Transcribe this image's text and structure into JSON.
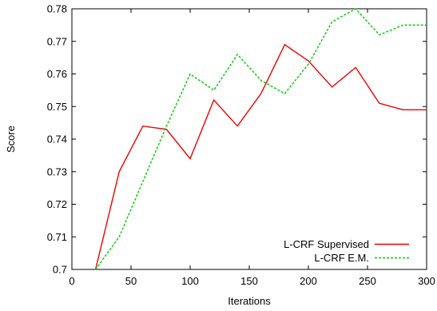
{
  "chart_data": {
    "type": "line",
    "xlabel": "Iterations",
    "ylabel": "Score",
    "xlim": [
      0,
      300
    ],
    "ylim": [
      0.7,
      0.78
    ],
    "xticks": [
      0,
      50,
      100,
      150,
      200,
      250,
      300
    ],
    "yticks": [
      0.7,
      0.71,
      0.72,
      0.73,
      0.74,
      0.75,
      0.76,
      0.77,
      0.78
    ],
    "xtick_labels": [
      "0",
      "50",
      "100",
      "150",
      "200",
      "250",
      "300"
    ],
    "ytick_labels": [
      "0.7",
      "0.71",
      "0.72",
      "0.73",
      "0.74",
      "0.75",
      "0.76",
      "0.77",
      "0.78"
    ],
    "grid": false,
    "legend_position": "bottom-right",
    "series": [
      {
        "name": "L-CRF Supervised",
        "color": "#ee0000",
        "dash": "solid",
        "x": [
          20,
          40,
          60,
          80,
          100,
          120,
          140,
          160,
          180,
          200,
          220,
          240,
          260,
          280,
          300
        ],
        "y": [
          0.7,
          0.73,
          0.744,
          0.743,
          0.734,
          0.752,
          0.744,
          0.754,
          0.769,
          0.764,
          0.756,
          0.762,
          0.751,
          0.749,
          0.749
        ]
      },
      {
        "name": "L-CRF E.M.",
        "color": "#00cc00",
        "dash": "dashed",
        "x": [
          20,
          40,
          60,
          80,
          100,
          120,
          140,
          160,
          180,
          200,
          220,
          240,
          260,
          280,
          300
        ],
        "y": [
          0.7,
          0.71,
          0.727,
          0.744,
          0.76,
          0.755,
          0.766,
          0.758,
          0.754,
          0.763,
          0.776,
          0.78,
          0.772,
          0.775,
          0.775
        ]
      }
    ]
  }
}
